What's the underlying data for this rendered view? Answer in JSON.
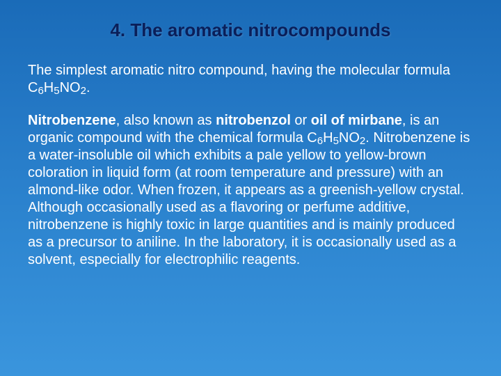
{
  "slide": {
    "title": "4. The aromatic nitrocompounds",
    "title_color": "#0a1f5a",
    "title_fontsize": 26,
    "body_color": "#ffffff",
    "body_fontsize": 20,
    "background_gradient": {
      "direction": "top-to-bottom",
      "stops": [
        "#1a6bb8",
        "#2478c5",
        "#2d85d0",
        "#3a95dd"
      ]
    },
    "para1": {
      "text_before": "The simplest aromatic nitro compound, having the molecular formula C",
      "sub1": "6",
      "mid1": "H",
      "sub2": "5",
      "mid2": "NO",
      "sub3": "2",
      "text_after": "."
    },
    "para2": {
      "bold1": "Nitrobenzene",
      "t1": ", also known as ",
      "bold2": "nitrobenzol",
      "t2": " or ",
      "bold3": "oil of mirbane",
      "t3": ", is an organic compound with the chemical formula C",
      "sub1": "6",
      "t4": "H",
      "sub2": "5",
      "t5": "NO",
      "sub3": "2",
      "t6": ". Nitrobenzene is a water-insoluble oil which exhibits a pale yellow to yellow-brown coloration in liquid form (at room temperature and pressure) with an almond-like odor. When frozen, it appears as a greenish-yellow crystal. Although occasionally used as a flavoring or perfume additive, nitrobenzene is highly toxic in large quantities and is mainly produced as a precursor to aniline. In the laboratory, it is occasionally used as a solvent, especially for electrophilic reagents."
    }
  }
}
